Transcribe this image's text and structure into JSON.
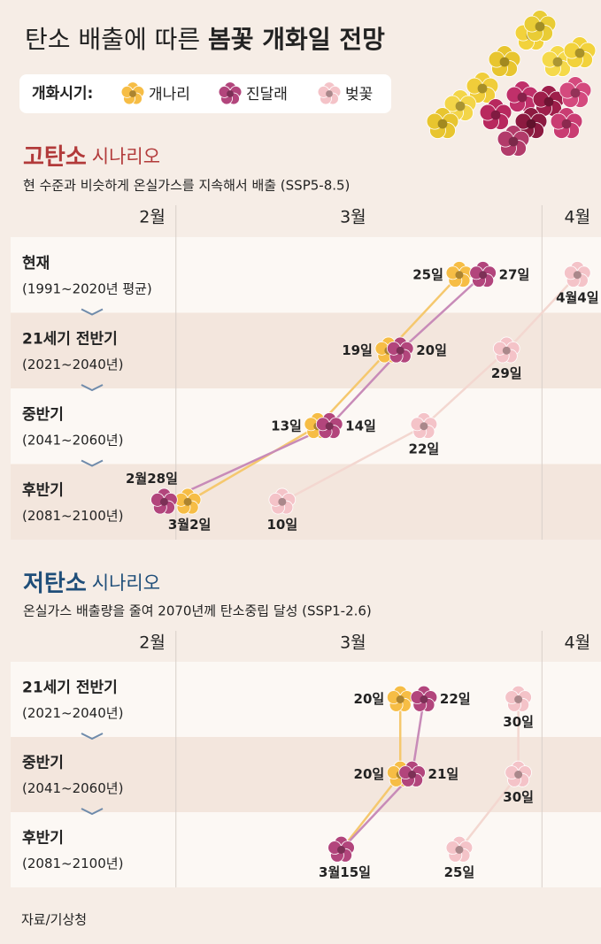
{
  "header": {
    "title": "탄소 배출에 따른",
    "title_bold": "봄꽃 개화일 전망"
  },
  "legend_label": "개화시기:",
  "source": "자료/기상청",
  "chart_data": [
    {
      "type": "dot",
      "title": "고탄소",
      "title_suffix": "시나리오",
      "subtitle": "현 수준과 비슷하게 온실가스를 지속해서 배출 (SSP5-8.5)",
      "title_color": "#b23a3a",
      "categories": [
        "현재",
        "21세기 전반기",
        "중반기",
        "후반기"
      ],
      "category_notes": [
        "(1991~2020년 평균)",
        "(2021~2040년)",
        "(2041~2060년)",
        "(2081~2100년)"
      ],
      "category_colors": [
        "#222222",
        "#b06470",
        "#b06470",
        "#b06470"
      ],
      "xlim": [
        -13,
        37
      ],
      "xticks": [
        {
          "value": -1,
          "label": "2월"
        },
        {
          "value": 16,
          "label": "3월"
        },
        {
          "value": 35,
          "label": "4월"
        }
      ],
      "xgrid": [
        1,
        32
      ],
      "series": [
        {
          "name": "개나리",
          "color": "#f6bd45",
          "values": [
            25,
            19,
            13,
            2
          ],
          "value_labels": [
            "25일",
            "19일",
            "13일",
            "3월2일"
          ]
        },
        {
          "name": "진달래",
          "color": "#b2457c",
          "values": [
            27,
            20,
            14,
            0
          ],
          "value_labels": [
            "27일",
            "20일",
            "14일",
            "2월28일"
          ]
        },
        {
          "name": "벚꽃",
          "color": "#f4c3c8",
          "values": [
            35,
            29,
            22,
            10
          ],
          "value_labels": [
            "4월4일",
            "29일",
            "22일",
            "10일"
          ]
        }
      ]
    },
    {
      "type": "dot",
      "title": "저탄소",
      "title_suffix": "시나리오",
      "subtitle": "온실가스 배출량을 줄여 2070년께 탄소중립 달성 (SSP1-2.6)",
      "title_color": "#1f4e79",
      "categories": [
        "21세기 전반기",
        "중반기",
        "후반기"
      ],
      "category_notes": [
        "(2021~2040년)",
        "(2041~2060년)",
        "(2081~2100년)"
      ],
      "category_colors": [
        "#5a7894",
        "#5a7894",
        "#5a7894"
      ],
      "xlim": [
        -13,
        37
      ],
      "xticks": [
        {
          "value": -1,
          "label": "2월"
        },
        {
          "value": 16,
          "label": "3월"
        },
        {
          "value": 35,
          "label": "4월"
        }
      ],
      "xgrid": [
        1,
        32
      ],
      "series": [
        {
          "name": "개나리",
          "color": "#f6bd45",
          "values": [
            20,
            20,
            15
          ],
          "value_labels": [
            "20일",
            "20일",
            "3월15일"
          ]
        },
        {
          "name": "진달래",
          "color": "#b2457c",
          "values": [
            22,
            21,
            15
          ],
          "value_labels": [
            "22일",
            "21일",
            null
          ]
        },
        {
          "name": "벚꽃",
          "color": "#f4c3c8",
          "values": [
            30,
            30,
            25
          ],
          "value_labels": [
            "30일",
            "30일",
            "25일"
          ]
        }
      ]
    }
  ]
}
